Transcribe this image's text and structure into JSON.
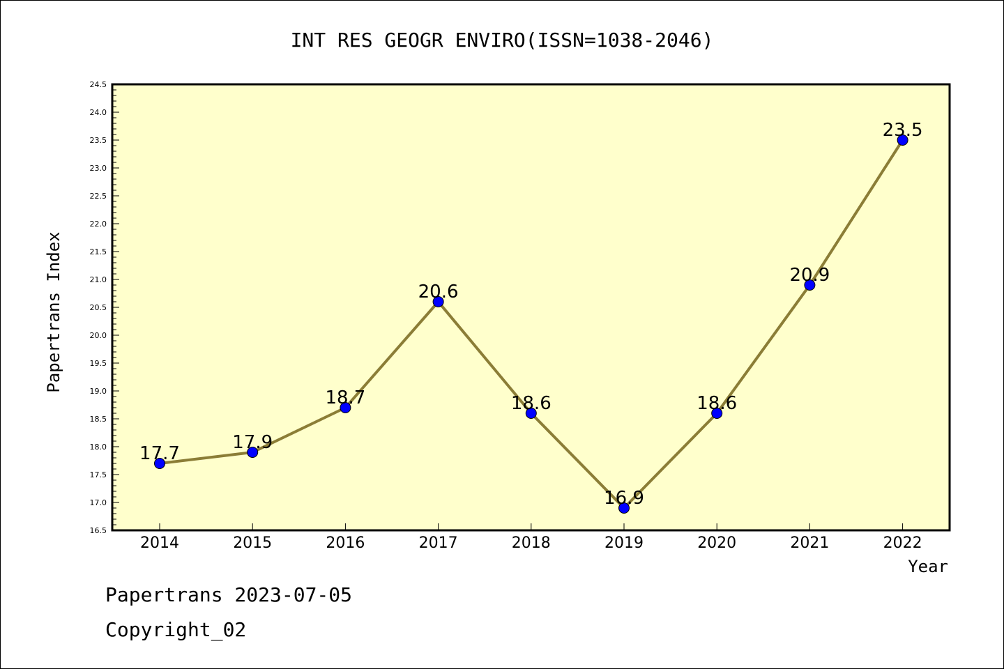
{
  "chart_data": {
    "type": "line",
    "title": "INT RES GEOGR ENVIRO(ISSN=1038-2046)",
    "xlabel": "Year",
    "ylabel": "Papertrans Index",
    "categories": [
      "2014",
      "2015",
      "2016",
      "2017",
      "2018",
      "2019",
      "2020",
      "2021",
      "2022"
    ],
    "series": [
      {
        "values": [
          17.7,
          17.9,
          18.7,
          20.6,
          18.6,
          16.9,
          18.6,
          20.9,
          23.5
        ]
      }
    ],
    "data_labels": [
      "17.7",
      "17.9",
      "18.7",
      "20.6",
      "18.6",
      "16.9",
      "18.6",
      "20.9",
      "23.5"
    ],
    "yticks": [
      "16.5",
      "17.0",
      "17.5",
      "18.0",
      "18.5",
      "19.0",
      "19.5",
      "20.0",
      "20.5",
      "21.0",
      "21.5",
      "22.0",
      "22.5",
      "23.0",
      "23.5",
      "24.0",
      "24.5"
    ],
    "ylim": [
      16.5,
      24.5
    ],
    "grid": false,
    "colors": {
      "plot_background": "#ffffcc",
      "line": "#8b7d36",
      "marker": "#0000ff"
    }
  },
  "footer": {
    "date_line": "Papertrans 2023-07-05",
    "copyright_line": "Copyright_02"
  }
}
